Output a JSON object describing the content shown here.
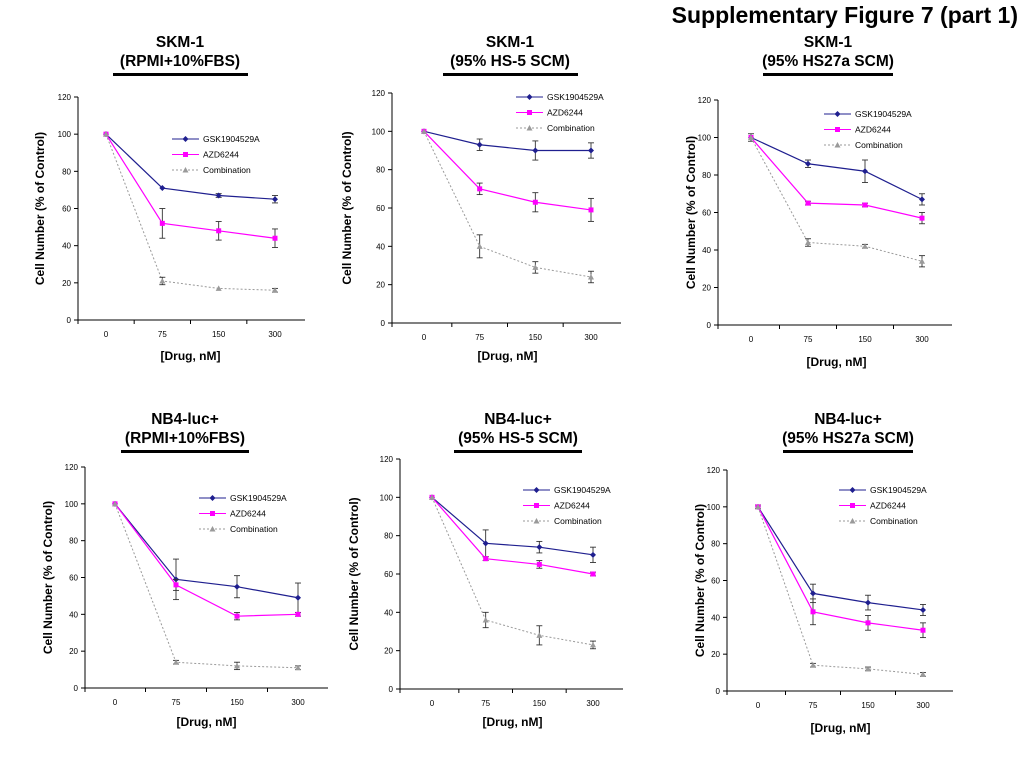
{
  "figure_title": "Supplementary Figure 7 (part 1)",
  "colors": {
    "GSK1904529A": "#1f1f8f",
    "AZD6244": "#ff00ff",
    "Combination": "#9a9a9a"
  },
  "legend_labels": [
    "GSK1904529A",
    "AZD6244",
    "Combination"
  ],
  "panels": [
    {
      "title_line1": "SKM-1",
      "title_line2": "(RPMI+10%FBS)"
    },
    {
      "title_line1": "SKM-1",
      "title_line2": "(95% HS-5 SCM)"
    },
    {
      "title_line1": "SKM-1",
      "title_line2": "(95% HS27a SCM)"
    },
    {
      "title_line1": "NB4-luc+",
      "title_line2": "(RPMI+10%FBS)"
    },
    {
      "title_line1": "NB4-luc+",
      "title_line2": "(95% HS-5 SCM)"
    },
    {
      "title_line1": "NB4-luc+",
      "title_line2": "(95% HS27a SCM)"
    }
  ],
  "chart_data": [
    {
      "type": "line",
      "title": "SKM-1 (RPMI+10%FBS)",
      "xlabel": "[Drug, nM]",
      "ylabel": "Cell Number (% of Control)",
      "categories": [
        "0",
        "75",
        "150",
        "300"
      ],
      "ylim": [
        0,
        120
      ],
      "yticks": [
        0,
        20,
        40,
        60,
        80,
        100,
        120
      ],
      "series": [
        {
          "name": "GSK1904529A",
          "values": [
            100,
            71,
            67,
            65
          ],
          "errors": [
            0,
            0,
            1,
            2
          ]
        },
        {
          "name": "AZD6244",
          "values": [
            100,
            52,
            48,
            44
          ],
          "errors": [
            0,
            8,
            5,
            5
          ]
        },
        {
          "name": "Combination",
          "values": [
            100,
            21,
            17,
            16
          ],
          "errors": [
            0,
            2,
            0,
            1
          ]
        }
      ]
    },
    {
      "type": "line",
      "title": "SKM-1 (95% HS-5 SCM)",
      "xlabel": "[Drug, nM]",
      "ylabel": "Cell Number (% of Control)",
      "categories": [
        "0",
        "75",
        "150",
        "300"
      ],
      "ylim": [
        0,
        120
      ],
      "yticks": [
        0,
        20,
        40,
        60,
        80,
        100,
        120
      ],
      "series": [
        {
          "name": "GSK1904529A",
          "values": [
            100,
            93,
            90,
            90
          ],
          "errors": [
            0,
            3,
            5,
            4
          ]
        },
        {
          "name": "AZD6244",
          "values": [
            100,
            70,
            63,
            59
          ],
          "errors": [
            0,
            3,
            5,
            6
          ]
        },
        {
          "name": "Combination",
          "values": [
            100,
            40,
            29,
            24
          ],
          "errors": [
            0,
            6,
            3,
            3
          ]
        }
      ]
    },
    {
      "type": "line",
      "title": "SKM-1 (95% HS27a SCM)",
      "xlabel": "[Drug, nM]",
      "ylabel": "Cell Number (% of Control)",
      "categories": [
        "0",
        "75",
        "150",
        "300"
      ],
      "ylim": [
        0,
        120
      ],
      "yticks": [
        0,
        20,
        40,
        60,
        80,
        100,
        120
      ],
      "series": [
        {
          "name": "GSK1904529A",
          "values": [
            100,
            86,
            82,
            67
          ],
          "errors": [
            2,
            2,
            6,
            3
          ]
        },
        {
          "name": "AZD6244",
          "values": [
            100,
            65,
            64,
            57
          ],
          "errors": [
            0,
            1,
            1,
            3
          ]
        },
        {
          "name": "Combination",
          "values": [
            100,
            44,
            42,
            34
          ],
          "errors": [
            0,
            2,
            1,
            3
          ]
        }
      ]
    },
    {
      "type": "line",
      "title": "NB4-luc+ (RPMI+10%FBS)",
      "xlabel": "[Drug, nM]",
      "ylabel": "Cell Number (% of Control)",
      "categories": [
        "0",
        "75",
        "150",
        "300"
      ],
      "ylim": [
        0,
        120
      ],
      "yticks": [
        0,
        20,
        40,
        60,
        80,
        100,
        120
      ],
      "series": [
        {
          "name": "GSK1904529A",
          "values": [
            100,
            59,
            55,
            49
          ],
          "errors": [
            0,
            11,
            6,
            8
          ]
        },
        {
          "name": "AZD6244",
          "values": [
            100,
            56,
            39,
            40
          ],
          "errors": [
            0,
            3,
            2,
            1
          ]
        },
        {
          "name": "Combination",
          "values": [
            100,
            14,
            12,
            11
          ],
          "errors": [
            0,
            1,
            2,
            1
          ]
        }
      ]
    },
    {
      "type": "line",
      "title": "NB4-luc+ (95% HS-5 SCM)",
      "xlabel": "[Drug, nM]",
      "ylabel": "Cell Number (% of Control)",
      "categories": [
        "0",
        "75",
        "150",
        "300"
      ],
      "ylim": [
        0,
        120
      ],
      "yticks": [
        0,
        20,
        40,
        60,
        80,
        100,
        120
      ],
      "series": [
        {
          "name": "GSK1904529A",
          "values": [
            100,
            76,
            74,
            70
          ],
          "errors": [
            0,
            7,
            3,
            4
          ]
        },
        {
          "name": "AZD6244",
          "values": [
            100,
            68,
            65,
            60
          ],
          "errors": [
            0,
            1,
            2,
            1
          ]
        },
        {
          "name": "Combination",
          "values": [
            100,
            36,
            28,
            23
          ],
          "errors": [
            0,
            4,
            5,
            2
          ]
        }
      ]
    },
    {
      "type": "line",
      "title": "NB4-luc+ (95% HS27a SCM)",
      "xlabel": "[Drug, nM]",
      "ylabel": "Cell Number (% of Control)",
      "categories": [
        "0",
        "75",
        "150",
        "300"
      ],
      "ylim": [
        0,
        120
      ],
      "yticks": [
        0,
        20,
        40,
        60,
        80,
        100,
        120
      ],
      "series": [
        {
          "name": "GSK1904529A",
          "values": [
            100,
            53,
            48,
            44
          ],
          "errors": [
            1,
            5,
            4,
            3
          ]
        },
        {
          "name": "AZD6244",
          "values": [
            100,
            43,
            37,
            33
          ],
          "errors": [
            0,
            7,
            4,
            4
          ]
        },
        {
          "name": "Combination",
          "values": [
            100,
            14,
            12,
            9
          ],
          "errors": [
            0,
            1,
            1,
            1
          ]
        }
      ]
    }
  ]
}
